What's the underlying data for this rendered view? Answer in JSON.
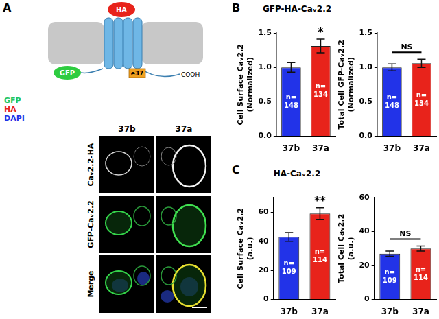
{
  "chart_data": [
    {
      "type": "bar",
      "title": "GFP-HA-Caᵥ2.2",
      "y_label": [
        "Cell Surface Caᵥ2.2",
        "(Normalized)"
      ],
      "categories": [
        "37b",
        "37a"
      ],
      "values": [
        1.0,
        1.31
      ],
      "errors": [
        0.07,
        0.1
      ],
      "colors": [
        "#2233e8",
        "#e8231b"
      ],
      "ylim": [
        0,
        1.5
      ],
      "yticks": [
        {
          "value": 0,
          "label": "0.0"
        },
        {
          "value": 0.5,
          "label": "0.5"
        },
        {
          "value": 1,
          "label": "1.0"
        },
        {
          "value": 1.5,
          "label": "1.5"
        }
      ],
      "bar_labels": [
        [
          "n=",
          "148"
        ],
        [
          "n=",
          "134"
        ]
      ],
      "annotations": [
        {
          "text": "*",
          "categories": [
            "37a"
          ]
        }
      ],
      "grid": false
    },
    {
      "type": "bar",
      "y_label": [
        "Total Cell GFP-Caᵥ2.2",
        "(Normalized)"
      ],
      "categories": [
        "37b",
        "37a"
      ],
      "values": [
        1.0,
        1.06
      ],
      "errors": [
        0.05,
        0.06
      ],
      "colors": [
        "#2233e8",
        "#e8231b"
      ],
      "ylim": [
        0,
        1.5
      ],
      "yticks": [
        {
          "value": 0,
          "label": "0.0"
        },
        {
          "value": 0.5,
          "label": "0.5"
        },
        {
          "value": 1,
          "label": "1.0"
        },
        {
          "value": 1.5,
          "label": "1.5"
        }
      ],
      "bar_labels": [
        [
          "n=",
          "148"
        ],
        [
          "n=",
          "134"
        ]
      ],
      "annotations": [
        {
          "text": "NS",
          "categories": [
            "37b",
            "37a"
          ]
        }
      ],
      "grid": false
    },
    {
      "type": "bar",
      "title": "HA-Caᵥ2.2",
      "y_label": [
        "Cell Surface Caᵥ2.2",
        "(a.u.)"
      ],
      "categories": [
        "37b",
        "37a"
      ],
      "values": [
        43,
        59
      ],
      "errors": [
        3,
        4
      ],
      "colors": [
        "#2233e8",
        "#e8231b"
      ],
      "ylim": [
        0,
        70
      ],
      "yticks": [
        0,
        20,
        40,
        60
      ],
      "bar_labels": [
        [
          "n=",
          "109"
        ],
        [
          "n=",
          "114"
        ]
      ],
      "annotations": [
        {
          "text": "**",
          "categories": [
            "37a"
          ]
        }
      ],
      "grid": false
    },
    {
      "type": "bar",
      "y_label": [
        "Total Cell Caᵥ2.2",
        "(a.u.)"
      ],
      "categories": [
        "37b",
        "37a"
      ],
      "values": [
        27,
        30
      ],
      "errors": [
        1.5,
        1.5
      ],
      "colors": [
        "#2233e8",
        "#e8231b"
      ],
      "ylim": [
        0,
        60
      ],
      "yticks": [
        0,
        20,
        40,
        60
      ],
      "bar_labels": [
        [
          "n=",
          "109"
        ],
        [
          "n=",
          "114"
        ]
      ],
      "annotations": [
        {
          "text": "NS",
          "categories": [
            "37b",
            "37a"
          ]
        }
      ],
      "grid": false
    }
  ],
  "figure": {
    "panel_labels": [
      "A",
      "B",
      "C"
    ],
    "diagram": {
      "ha": "HA",
      "gfp": "GFP",
      "exon": "e37",
      "terminus": "COOH"
    },
    "channels": [
      {
        "text": "GFP",
        "color": "#22c55e"
      },
      {
        "text": "HA",
        "color": "#e8231b"
      },
      {
        "text": "DAPI",
        "color": "#2233e8"
      }
    ],
    "columns": [
      "37b",
      "37a"
    ],
    "rows": [
      "Caᵥ2.2-HA",
      "GFP-Caᵥ2.2",
      "Merge"
    ]
  }
}
